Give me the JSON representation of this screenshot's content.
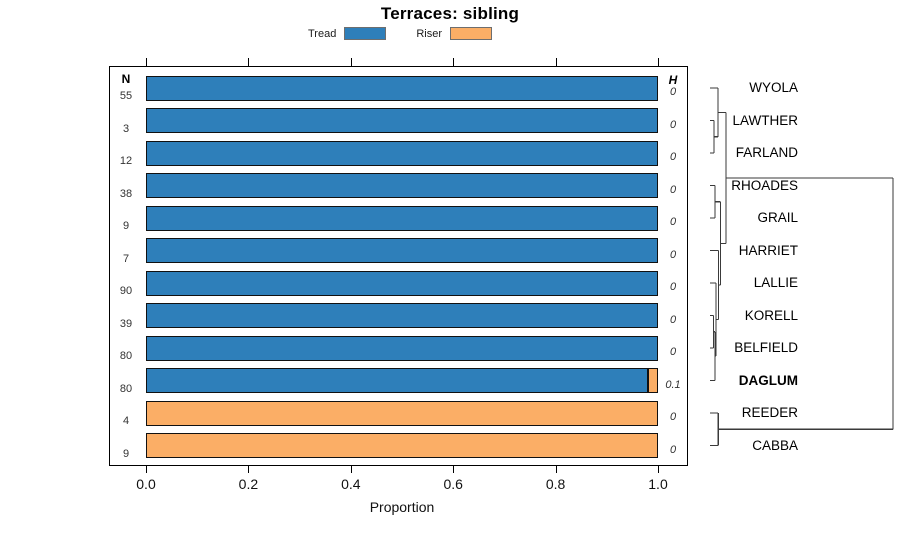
{
  "title": "Terraces: sibling",
  "legend": {
    "items": [
      {
        "label": "Tread",
        "color": "#2E7FBA"
      },
      {
        "label": "Riser",
        "color": "#FBAE66"
      }
    ]
  },
  "table_headers": {
    "n": "N",
    "h": "H"
  },
  "x_axis": {
    "label": "Proportion",
    "ticks": [
      "0.0",
      "0.2",
      "0.4",
      "0.6",
      "0.8",
      "1.0"
    ],
    "range": [
      0,
      1
    ]
  },
  "chart_data": {
    "type": "bar",
    "orientation": "horizontal",
    "stacked": true,
    "title": "Terraces: sibling",
    "xlabel": "Proportion",
    "xlim": [
      0,
      1
    ],
    "grid": false,
    "legend_position": "top",
    "series_names": [
      "Tread",
      "Riser"
    ],
    "categories": [
      "WYOLA",
      "LAWTHER",
      "FARLAND",
      "RHOADES",
      "GRAIL",
      "HARRIET",
      "LALLIE",
      "KORELL",
      "BELFIELD",
      "DAGLUM",
      "REEDER",
      "CABBA"
    ],
    "rows": [
      {
        "label": "WYOLA",
        "n": 55,
        "h": "0",
        "tread": 1.0,
        "riser": 0,
        "bold": false
      },
      {
        "label": "LAWTHER",
        "n": 3,
        "h": "0",
        "tread": 1.0,
        "riser": 0,
        "bold": false
      },
      {
        "label": "FARLAND",
        "n": 12,
        "h": "0",
        "tread": 1.0,
        "riser": 0,
        "bold": false
      },
      {
        "label": "RHOADES",
        "n": 38,
        "h": "0",
        "tread": 1.0,
        "riser": 0,
        "bold": false
      },
      {
        "label": "GRAIL",
        "n": 9,
        "h": "0",
        "tread": 1.0,
        "riser": 0,
        "bold": false
      },
      {
        "label": "HARRIET",
        "n": 7,
        "h": "0",
        "tread": 1.0,
        "riser": 0,
        "bold": false
      },
      {
        "label": "LALLIE",
        "n": 90,
        "h": "0",
        "tread": 1.0,
        "riser": 0,
        "bold": false
      },
      {
        "label": "KORELL",
        "n": 39,
        "h": "0",
        "tread": 1.0,
        "riser": 0,
        "bold": false
      },
      {
        "label": "BELFIELD",
        "n": 80,
        "h": "0",
        "tread": 1.0,
        "riser": 0,
        "bold": false
      },
      {
        "label": "DAGLUM",
        "n": 80,
        "h": "0.1",
        "tread": 0.98,
        "riser": 0.02,
        "bold": true
      },
      {
        "label": "REEDER",
        "n": 4,
        "h": "0",
        "tread": 0,
        "riser": 1.0,
        "bold": false
      },
      {
        "label": "CABBA",
        "n": 9,
        "h": "0",
        "tread": 0,
        "riser": 1.0,
        "bold": false
      }
    ]
  },
  "dendrogram": {
    "merges": [
      {
        "id": "m0",
        "a": "LAWTHER",
        "b": "FARLAND",
        "h": 0.022
      },
      {
        "id": "m1",
        "a": "WYOLA",
        "b": "m0",
        "h": 0.044
      },
      {
        "id": "m2",
        "a": "RHOADES",
        "b": "GRAIL",
        "h": 0.027
      },
      {
        "id": "m3",
        "a": "KORELL",
        "b": "BELFIELD",
        "h": 0.019
      },
      {
        "id": "m4",
        "a": "m3",
        "b": "DAGLUM",
        "h": 0.027
      },
      {
        "id": "m5",
        "a": "LALLIE",
        "b": "m4",
        "h": 0.033
      },
      {
        "id": "m6",
        "a": "HARRIET",
        "b": "m5",
        "h": 0.046
      },
      {
        "id": "m7",
        "a": "m2",
        "b": "m6",
        "h": 0.058
      },
      {
        "id": "m8",
        "a": "m1",
        "b": "m7",
        "h": 0.087
      },
      {
        "id": "m9",
        "a": "REEDER",
        "b": "CABBA",
        "h": 0.045
      },
      {
        "id": "root",
        "a": "m8",
        "b": "m9",
        "h": 1.0
      }
    ]
  }
}
